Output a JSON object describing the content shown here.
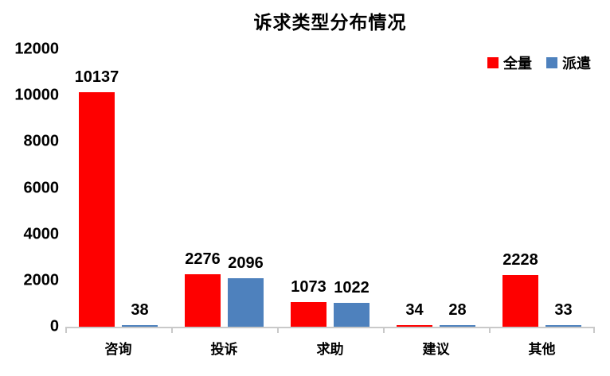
{
  "chart_data": {
    "type": "bar",
    "title": "诉求类型分布情况",
    "categories": [
      "咨询",
      "投诉",
      "求助",
      "建议",
      "其他"
    ],
    "series": [
      {
        "name": "全量",
        "color": "#fe0000",
        "values": [
          10137,
          2276,
          1073,
          34,
          2228
        ]
      },
      {
        "name": "派遣",
        "color": "#4e81bd",
        "values": [
          38,
          2096,
          1022,
          28,
          33
        ]
      }
    ],
    "ylim": [
      0,
      12000
    ],
    "yticks": [
      0,
      2000,
      4000,
      6000,
      8000,
      10000,
      12000
    ],
    "grid": false,
    "legend_position": "top-right",
    "data_labels": true,
    "colors": {
      "axis_line": "#c9c9c9",
      "text": "#000000",
      "background": "#ffffff"
    }
  }
}
